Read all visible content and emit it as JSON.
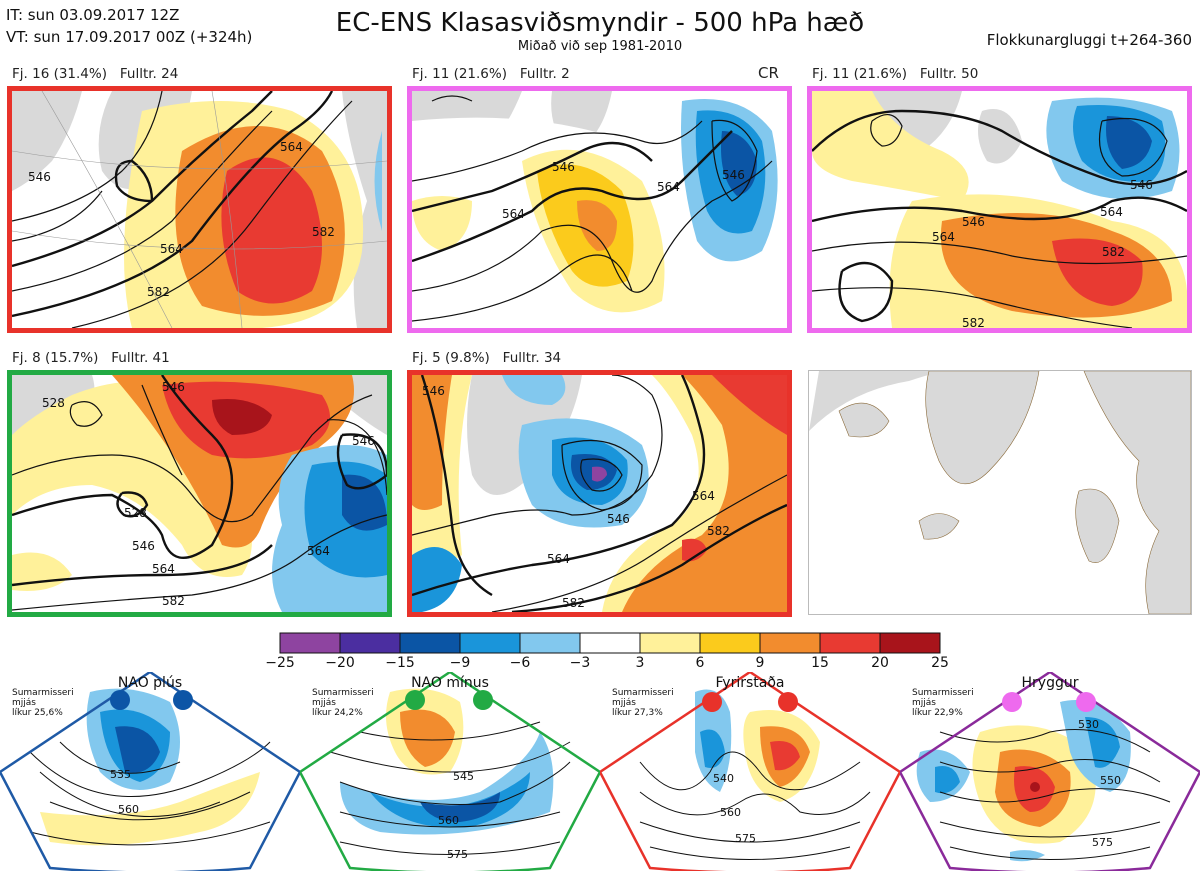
{
  "header": {
    "it": "IT: sun 03.09.2017 12Z",
    "vt": "VT: sun 17.09.2017 00Z  (+324h)",
    "title": "EC-ENS Klasasviðsmyndir - 500 hPa hæð",
    "subtitle": "Miðað við sep 1981-2010",
    "window": "Flokkunargluggi t+264-360"
  },
  "clusters": [
    {
      "label": "Fj. 16 (31.4%)   Fulltr. 24",
      "border": "#e8322a",
      "contours": [
        "546",
        "564",
        "564",
        "582",
        "582"
      ],
      "tag": ""
    },
    {
      "label": "Fj. 11 (21.6%)   Fulltr. 2",
      "border": "#ee6aee",
      "contours": [
        "546",
        "546",
        "564",
        "564"
      ],
      "tag": "CR"
    },
    {
      "label": "Fj. 11 (21.6%)   Fulltr. 50",
      "border": "#ee6aee",
      "contours": [
        "546",
        "564",
        "546",
        "564",
        "582",
        "582"
      ],
      "tag": ""
    },
    {
      "label": "Fj. 8 (15.7%)   Fulltr. 41",
      "border": "#22aa44",
      "contours": [
        "528",
        "546",
        "546",
        "546",
        "564",
        "564",
        "582",
        "528"
      ],
      "tag": ""
    },
    {
      "label": "Fj. 5 (9.8%)   Fulltr. 34",
      "border": "#e8322a",
      "contours": [
        "546",
        "546",
        "564",
        "564",
        "582",
        "582"
      ],
      "tag": ""
    }
  ],
  "colorbar": {
    "ticks": [
      "−25",
      "−20",
      "−15",
      "−9",
      "−6",
      "−3",
      "3",
      "6",
      "9",
      "15",
      "20",
      "25"
    ],
    "colors": [
      "#8e44a0",
      "#4b2ea0",
      "#0b55a5",
      "#1a95da",
      "#82c8ee",
      "#ffffff",
      "#fff19a",
      "#fbcb1c",
      "#f28c2e",
      "#e83a32",
      "#a8141b"
    ]
  },
  "regimes": [
    {
      "title": "NAO plús",
      "note": "Sumarmisseri\nmjjás\nlíkur 25,6%",
      "color": "#1f5aa6",
      "dot": "#0d55a6",
      "contours": [
        "535",
        "560"
      ]
    },
    {
      "title": "NAO mínus",
      "note": "Sumarmisseri\nmjjás\nlíkur 24,2%",
      "color": "#22aa44",
      "dot": "#22aa44",
      "contours": [
        "545",
        "560",
        "575"
      ]
    },
    {
      "title": "Fyrirstaða",
      "note": "Sumarmisseri\nmjjás\nlíkur 27,3%",
      "color": "#e8322a",
      "dot": "#e8322a",
      "contours": [
        "540",
        "560",
        "575"
      ]
    },
    {
      "title": "Hryggur",
      "note": "Sumarmisseri\nmjjás\nlíkur 22,9%",
      "color": "#8a2a9a",
      "dot": "#ee6aee",
      "contours": [
        "530",
        "550",
        "575"
      ]
    }
  ]
}
